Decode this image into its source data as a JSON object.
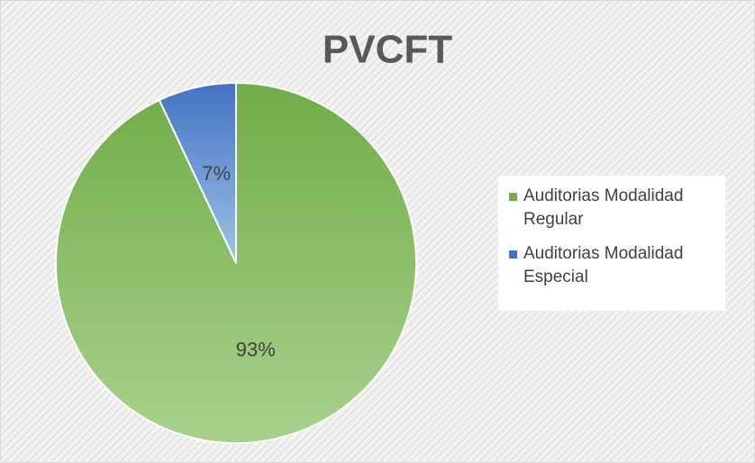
{
  "chart_data": {
    "type": "pie",
    "title": "PVCFT",
    "categories": [
      "Auditorias Modalidad Regular",
      "Auditorias Modalidad Especial"
    ],
    "values": [
      93,
      7
    ],
    "value_labels": [
      "93%",
      "7%"
    ],
    "colors": [
      "#70ad47",
      "#4472c4"
    ],
    "legend": "right"
  }
}
